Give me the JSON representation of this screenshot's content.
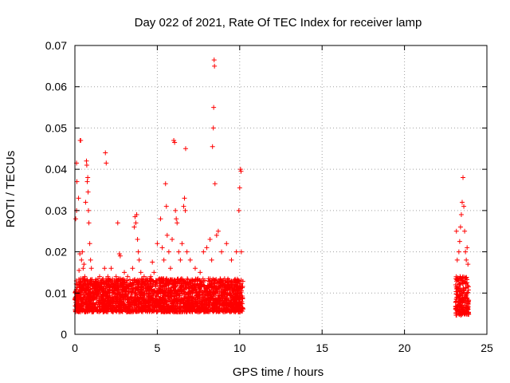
{
  "chart_data": {
    "type": "scatter",
    "title": "Day 022 of 2021, Rate Of TEC Index for receiver lamp",
    "xlabel": "GPS time / hours",
    "ylabel": "ROTI / TECUs",
    "xlim": [
      0,
      25
    ],
    "ylim": [
      0,
      0.07
    ],
    "x_ticks": [
      0,
      5,
      10,
      15,
      20,
      25
    ],
    "y_ticks": [
      0,
      0.01,
      0.02,
      0.03,
      0.04,
      0.05,
      0.06,
      0.07
    ],
    "x_tick_labels": [
      "0",
      "5",
      "10",
      "15",
      "20",
      "25"
    ],
    "y_tick_labels": [
      "0",
      "0.01",
      "0.02",
      "0.03",
      "0.04",
      "0.05",
      "0.06",
      "0.07"
    ],
    "grid": true,
    "marker": "+",
    "color": "#ff0000",
    "series": [
      {
        "points": [
          [
            0.05,
            0.028
          ],
          [
            0.1,
            0.03
          ],
          [
            0.1,
            0.0415
          ],
          [
            0.12,
            0.037
          ],
          [
            0.15,
            0.012
          ],
          [
            0.2,
            0.01
          ],
          [
            0.22,
            0.033
          ],
          [
            0.25,
            0.0155
          ],
          [
            0.3,
            0.0195
          ],
          [
            0.32,
            0.047
          ],
          [
            0.35,
            0.047
          ],
          [
            0.4,
            0.018
          ],
          [
            0.45,
            0.02
          ],
          [
            0.5,
            0.016
          ],
          [
            0.55,
            0.017
          ],
          [
            0.6,
            0.014
          ],
          [
            0.65,
            0.032
          ],
          [
            0.7,
            0.042
          ],
          [
            0.72,
            0.041
          ],
          [
            0.75,
            0.037
          ],
          [
            0.78,
            0.038
          ],
          [
            0.8,
            0.0345
          ],
          [
            0.82,
            0.03
          ],
          [
            0.85,
            0.027
          ],
          [
            0.9,
            0.022
          ],
          [
            0.95,
            0.018
          ],
          [
            1.0,
            0.016
          ],
          [
            1.3,
            0.012
          ],
          [
            1.5,
            0.014
          ],
          [
            1.7,
            0.013
          ],
          [
            1.8,
            0.016
          ],
          [
            1.85,
            0.044
          ],
          [
            1.9,
            0.0415
          ],
          [
            2.0,
            0.014
          ],
          [
            2.2,
            0.016
          ],
          [
            2.5,
            0.014
          ],
          [
            2.6,
            0.027
          ],
          [
            2.7,
            0.0195
          ],
          [
            2.75,
            0.019
          ],
          [
            3.0,
            0.015
          ],
          [
            3.2,
            0.014
          ],
          [
            3.5,
            0.016
          ],
          [
            3.6,
            0.026
          ],
          [
            3.65,
            0.0285
          ],
          [
            3.7,
            0.027
          ],
          [
            3.75,
            0.029
          ],
          [
            3.8,
            0.023
          ],
          [
            3.85,
            0.02
          ],
          [
            3.9,
            0.018
          ],
          [
            4.0,
            0.015
          ],
          [
            4.2,
            0.014
          ],
          [
            4.4,
            0.0135
          ],
          [
            4.6,
            0.014
          ],
          [
            4.7,
            0.0175
          ],
          [
            4.8,
            0.015
          ],
          [
            5.0,
            0.022
          ],
          [
            5.2,
            0.028
          ],
          [
            5.3,
            0.021
          ],
          [
            5.4,
            0.018
          ],
          [
            5.5,
            0.0365
          ],
          [
            5.55,
            0.031
          ],
          [
            5.6,
            0.024
          ],
          [
            5.7,
            0.02
          ],
          [
            5.8,
            0.016
          ],
          [
            5.9,
            0.023
          ],
          [
            6.0,
            0.047
          ],
          [
            6.05,
            0.0465
          ],
          [
            6.1,
            0.03
          ],
          [
            6.15,
            0.028
          ],
          [
            6.2,
            0.027
          ],
          [
            6.3,
            0.02
          ],
          [
            6.4,
            0.018
          ],
          [
            6.5,
            0.022
          ],
          [
            6.6,
            0.031
          ],
          [
            6.65,
            0.033
          ],
          [
            6.7,
            0.03
          ],
          [
            6.72,
            0.045
          ],
          [
            6.8,
            0.02
          ],
          [
            7.0,
            0.018
          ],
          [
            7.3,
            0.016
          ],
          [
            7.6,
            0.015
          ],
          [
            7.8,
            0.02
          ],
          [
            8.0,
            0.021
          ],
          [
            8.2,
            0.023
          ],
          [
            8.3,
            0.018
          ],
          [
            8.35,
            0.0455
          ],
          [
            8.4,
            0.05
          ],
          [
            8.42,
            0.055
          ],
          [
            8.45,
            0.0665
          ],
          [
            8.47,
            0.065
          ],
          [
            8.5,
            0.0365
          ],
          [
            8.6,
            0.024
          ],
          [
            8.7,
            0.025
          ],
          [
            8.9,
            0.02
          ],
          [
            9.2,
            0.022
          ],
          [
            9.5,
            0.018
          ],
          [
            9.8,
            0.02
          ],
          [
            9.95,
            0.03
          ],
          [
            10.0,
            0.0355
          ],
          [
            10.05,
            0.04
          ],
          [
            10.08,
            0.0395
          ],
          [
            10.1,
            0.02
          ]
        ]
      },
      {
        "points": [
          [
            23.15,
            0.025
          ],
          [
            23.2,
            0.018
          ],
          [
            23.3,
            0.02
          ],
          [
            23.35,
            0.0225
          ],
          [
            23.4,
            0.026
          ],
          [
            23.45,
            0.029
          ],
          [
            23.5,
            0.032
          ],
          [
            23.55,
            0.038
          ],
          [
            23.6,
            0.031
          ],
          [
            23.65,
            0.025
          ],
          [
            23.7,
            0.02
          ],
          [
            23.75,
            0.018
          ],
          [
            23.8,
            0.021
          ],
          [
            23.85,
            0.017
          ]
        ]
      }
    ],
    "dense_bands": [
      {
        "x_start": 0.0,
        "x_end": 10.2,
        "y_min": 0.004,
        "y_max": 0.0135
      },
      {
        "x_start": 23.1,
        "x_end": 23.9,
        "y_min": 0.003,
        "y_max": 0.014
      }
    ]
  }
}
